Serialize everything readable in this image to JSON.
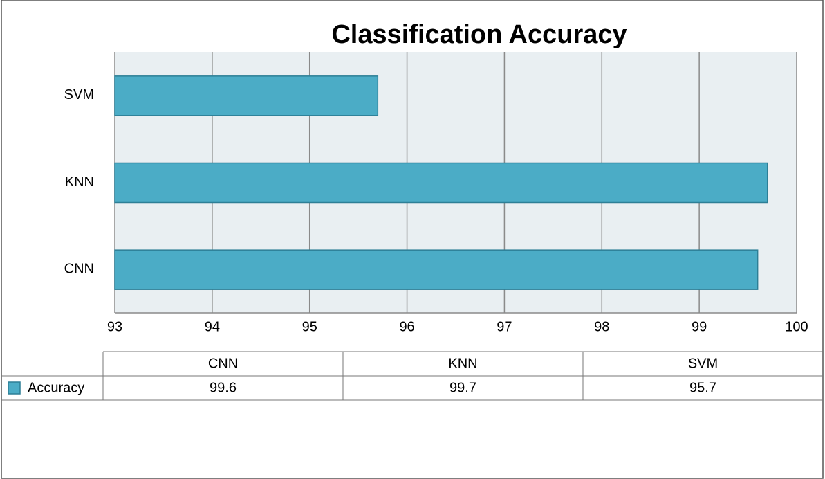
{
  "chart_data": {
    "type": "bar",
    "orientation": "horizontal",
    "title": "Classification Accuracy",
    "categories": [
      "CNN",
      "KNN",
      "SVM"
    ],
    "series": [
      {
        "name": "Accuracy",
        "color": "#4bacc6",
        "values": [
          99.6,
          99.7,
          95.7
        ]
      }
    ],
    "xlim": [
      93,
      100
    ],
    "xticks": [
      93,
      94,
      95,
      96,
      97,
      98,
      99,
      100
    ],
    "grid": true,
    "data_table": true
  }
}
